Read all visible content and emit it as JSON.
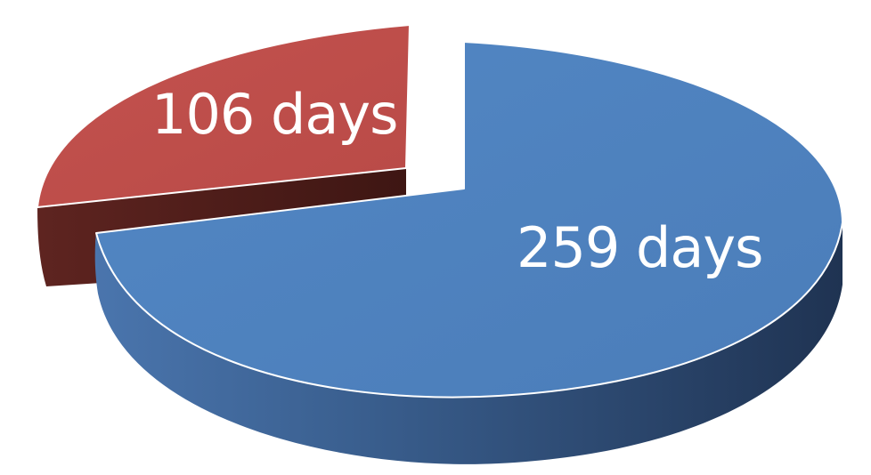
{
  "chart_data": {
    "type": "pie",
    "style": "3d-exploded",
    "slices": [
      {
        "value": 259,
        "label": "259 days",
        "color": "#4f81bd",
        "side_color_light": "#4a75ad",
        "side_color_dark": "#1f3352"
      },
      {
        "value": 106,
        "label": "106 days",
        "color": "#c0504d",
        "side_color_light": "#5e2420",
        "side_color_dark": "#3e1613",
        "exploded": true
      }
    ],
    "title": "",
    "legend": "none",
    "grid": false
  }
}
